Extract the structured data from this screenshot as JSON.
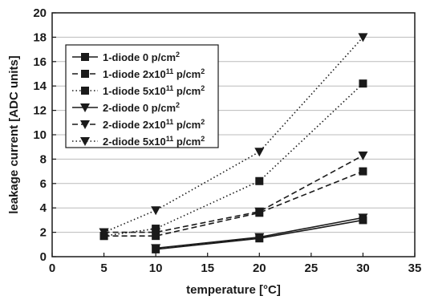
{
  "chart_data": {
    "type": "line",
    "xlabel": "temperature [°C]",
    "ylabel": "leakage current [ADC units]",
    "xlim": [
      0,
      35
    ],
    "ylim": [
      0,
      20
    ],
    "xticks": [
      "0",
      "5",
      "10",
      "15",
      "20",
      "25",
      "30",
      "35"
    ],
    "yticks": [
      "0",
      "2",
      "4",
      "6",
      "8",
      "10",
      "12",
      "14",
      "16",
      "18",
      "20"
    ],
    "grid": "horizontal",
    "legend_position": "upper-left",
    "series": [
      {
        "name": "1-diode 0 p/cm",
        "sup": "2",
        "marker": "square",
        "line": "solid",
        "x": [
          10,
          20,
          30
        ],
        "y": [
          0.6,
          1.5,
          3.0
        ]
      },
      {
        "name": "1-diode 2x10",
        "sup": "11",
        "unit": " p/cm",
        "unit_sup": "2",
        "marker": "square",
        "line": "dashed",
        "x": [
          5,
          10,
          20,
          30
        ],
        "y": [
          1.7,
          1.7,
          3.6,
          7.0
        ]
      },
      {
        "name": "1-diode 5x10",
        "sup": "11",
        "unit": " p/cm",
        "unit_sup": "2",
        "marker": "square",
        "line": "dotted",
        "x": [
          5,
          10,
          20,
          30
        ],
        "y": [
          1.7,
          2.3,
          6.2,
          14.2
        ]
      },
      {
        "name": "2-diode 0 p/cm",
        "sup": "2",
        "marker": "triangle-down",
        "line": "solid",
        "x": [
          10,
          20,
          30
        ],
        "y": [
          0.7,
          1.6,
          3.2
        ]
      },
      {
        "name": "2-diode 2x10",
        "sup": "11",
        "unit": " p/cm",
        "unit_sup": "2",
        "marker": "triangle-down",
        "line": "dashed",
        "x": [
          5,
          10,
          20,
          30
        ],
        "y": [
          2.0,
          2.0,
          3.7,
          8.3
        ]
      },
      {
        "name": "2-diode 5x10",
        "sup": "11",
        "unit": " p/cm",
        "unit_sup": "2",
        "marker": "triangle-down",
        "line": "dotted",
        "x": [
          5,
          10,
          20,
          30
        ],
        "y": [
          2.0,
          3.8,
          8.6,
          18.0
        ]
      }
    ],
    "colors": {
      "series": "#1a1a1a",
      "grid": "#bcbcbc",
      "axis": "#1a1a1a"
    }
  }
}
